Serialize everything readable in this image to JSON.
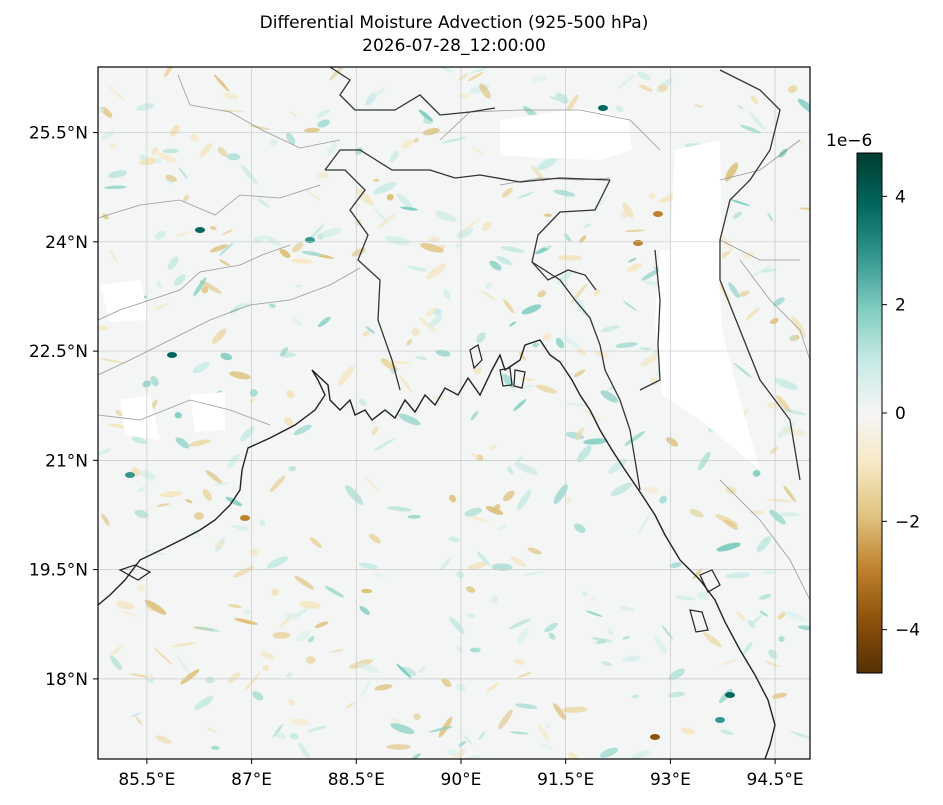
{
  "title": {
    "line1": "Differential Moisture Advection (925-500 hPa)",
    "line2": "2026-07-28_12:00:00"
  },
  "map": {
    "lon_range": [
      84.8,
      95.0
    ],
    "lat_range": [
      16.9,
      26.4
    ],
    "lon_ticks": [
      {
        "value": 85.5,
        "label": "85.5°E"
      },
      {
        "value": 87.0,
        "label": "87°E"
      },
      {
        "value": 88.5,
        "label": "88.5°E"
      },
      {
        "value": 90.0,
        "label": "90°E"
      },
      {
        "value": 91.5,
        "label": "91.5°E"
      },
      {
        "value": 93.0,
        "label": "93°E"
      },
      {
        "value": 94.5,
        "label": "94.5°E"
      }
    ],
    "lat_ticks": [
      {
        "value": 25.5,
        "label": "25.5°N"
      },
      {
        "value": 24.0,
        "label": "24°N"
      },
      {
        "value": 22.5,
        "label": "22.5°N"
      },
      {
        "value": 21.0,
        "label": "21°N"
      },
      {
        "value": 19.5,
        "label": "19.5°N"
      },
      {
        "value": 18.0,
        "label": "18°N"
      }
    ],
    "gridlines": true,
    "colormap": "BrBG",
    "coastline_color": "#222222",
    "border_color": "#999999"
  },
  "colorbar": {
    "exponent_label": "1e−6",
    "range": [
      -4.8,
      4.8
    ],
    "ticks": [
      {
        "value": 4,
        "label": "4"
      },
      {
        "value": 2,
        "label": "2"
      },
      {
        "value": 0,
        "label": "0"
      },
      {
        "value": -2,
        "label": "−2"
      },
      {
        "value": -4,
        "label": "−4"
      }
    ],
    "colors": [
      "#543005",
      "#8c510a",
      "#bf812d",
      "#dfc27d",
      "#f6e8c3",
      "#f5f5f5",
      "#c7eae5",
      "#80cdc1",
      "#35978f",
      "#01665e",
      "#003c30"
    ]
  }
}
